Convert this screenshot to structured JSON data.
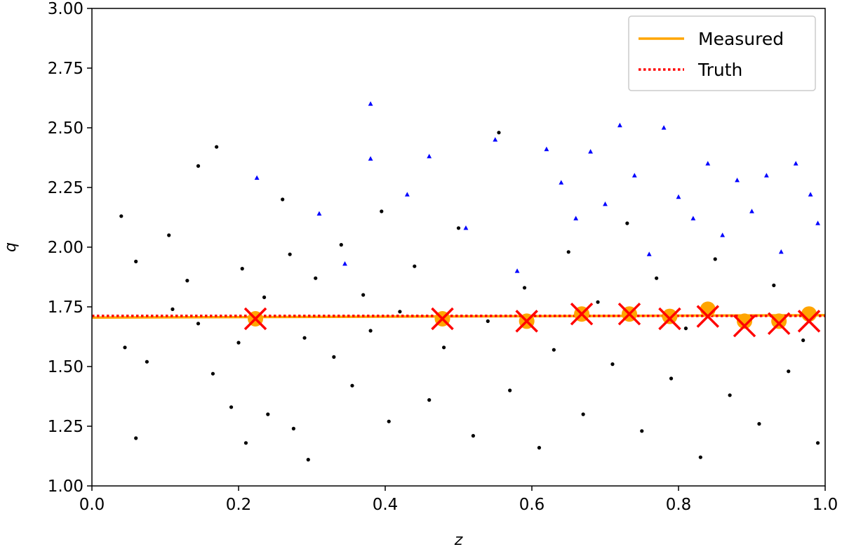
{
  "chart_data": {
    "type": "scatter",
    "xlabel": "z",
    "ylabel": "q",
    "xlim": [
      0.0,
      1.0
    ],
    "ylim": [
      1.0,
      3.0
    ],
    "xticks": [
      "0.0",
      "0.2",
      "0.4",
      "0.6",
      "0.8",
      "1.0"
    ],
    "yticks": [
      "1.00",
      "1.25",
      "1.50",
      "1.75",
      "2.00",
      "2.25",
      "2.50",
      "2.75",
      "3.00"
    ],
    "grid": false,
    "legend_position": "top-right",
    "series": [
      {
        "name": "Measured",
        "kind": "line",
        "color": "#ffa500",
        "x": [
          0.0,
          1.0
        ],
        "y": [
          1.705,
          1.715
        ]
      },
      {
        "name": "Truth",
        "kind": "dotted-line",
        "color": "#ff0000",
        "x": [
          0.0,
          1.0
        ],
        "y": [
          1.712,
          1.712
        ]
      },
      {
        "kind": "points",
        "marker": "circle",
        "color": "#000000",
        "x": [
          0.04,
          0.045,
          0.06,
          0.06,
          0.075,
          0.105,
          0.11,
          0.13,
          0.145,
          0.145,
          0.165,
          0.17,
          0.19,
          0.2,
          0.205,
          0.21,
          0.235,
          0.24,
          0.26,
          0.27,
          0.275,
          0.29,
          0.295,
          0.305,
          0.33,
          0.34,
          0.355,
          0.37,
          0.38,
          0.395,
          0.405,
          0.42,
          0.44,
          0.46,
          0.48,
          0.5,
          0.52,
          0.54,
          0.555,
          0.57,
          0.59,
          0.61,
          0.63,
          0.65,
          0.67,
          0.69,
          0.71,
          0.73,
          0.75,
          0.77,
          0.79,
          0.81,
          0.83,
          0.85,
          0.87,
          0.89,
          0.91,
          0.93,
          0.95,
          0.97,
          0.99
        ],
        "y": [
          2.13,
          1.58,
          1.94,
          1.2,
          1.52,
          2.05,
          1.74,
          1.86,
          1.68,
          2.34,
          1.47,
          2.42,
          1.33,
          1.6,
          1.91,
          1.18,
          1.79,
          1.3,
          2.2,
          1.97,
          1.24,
          1.62,
          1.11,
          1.87,
          1.54,
          2.01,
          1.42,
          1.8,
          1.65,
          2.15,
          1.27,
          1.73,
          1.92,
          1.36,
          1.58,
          2.08,
          1.21,
          1.69,
          2.48,
          1.4,
          1.83,
          1.16,
          1.57,
          1.98,
          1.3,
          1.77,
          1.51,
          2.1,
          1.23,
          1.87,
          1.45,
          1.66,
          1.12,
          1.95,
          1.38,
          1.71,
          1.26,
          1.84,
          1.48,
          1.61,
          1.18
        ]
      },
      {
        "kind": "points",
        "marker": "triangle",
        "color": "#0000ff",
        "x": [
          0.225,
          0.31,
          0.345,
          0.38,
          0.38,
          0.43,
          0.46,
          0.51,
          0.55,
          0.58,
          0.62,
          0.64,
          0.66,
          0.68,
          0.7,
          0.72,
          0.74,
          0.76,
          0.78,
          0.8,
          0.82,
          0.84,
          0.86,
          0.88,
          0.9,
          0.92,
          0.94,
          0.96,
          0.98,
          0.99
        ],
        "y": [
          2.29,
          2.14,
          1.93,
          2.6,
          2.37,
          2.22,
          2.38,
          2.08,
          2.45,
          1.9,
          2.41,
          2.27,
          2.12,
          2.4,
          2.18,
          2.51,
          2.3,
          1.97,
          2.5,
          2.21,
          2.12,
          2.35,
          2.05,
          2.28,
          2.15,
          2.3,
          1.98,
          2.35,
          2.22,
          2.1
        ]
      },
      {
        "kind": "markers",
        "marker": "x",
        "color": "#ff0000",
        "x": [
          0.223,
          0.478,
          0.593,
          0.668,
          0.733,
          0.788,
          0.84,
          0.89,
          0.937,
          0.978
        ],
        "y": [
          1.7,
          1.7,
          1.69,
          1.72,
          1.72,
          1.7,
          1.71,
          1.67,
          1.68,
          1.69
        ]
      },
      {
        "kind": "markers",
        "marker": "circle",
        "color": "#ffa500",
        "x": [
          0.223,
          0.478,
          0.593,
          0.668,
          0.733,
          0.788,
          0.84,
          0.89,
          0.937,
          0.978
        ],
        "y": [
          1.7,
          1.7,
          1.69,
          1.72,
          1.72,
          1.71,
          1.74,
          1.69,
          1.69,
          1.72
        ]
      }
    ]
  }
}
